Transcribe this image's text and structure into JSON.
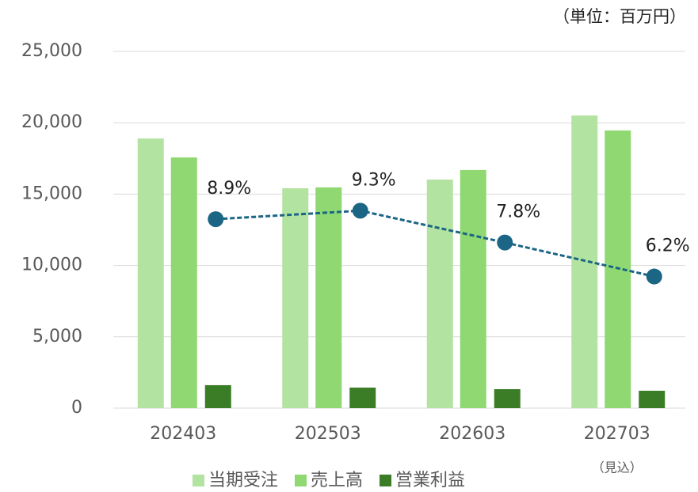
{
  "chart_data": {
    "type": "bar",
    "unit_label": "（単位：百万円）",
    "categories": [
      "202403",
      "202503",
      "202603",
      "202703"
    ],
    "annotation": "（見込）",
    "series": [
      {
        "name": "当期受注",
        "color": "#b3e3a0",
        "values": [
          18900,
          15410,
          16020,
          20510
        ]
      },
      {
        "name": "売上高",
        "color": "#8fd872",
        "values": [
          17570,
          15470,
          16690,
          19460
        ]
      },
      {
        "name": "営業利益",
        "color": "#3a7d26",
        "values": [
          1610,
          1440,
          1330,
          1220
        ]
      }
    ],
    "line": {
      "type": "line",
      "axis": "y2",
      "color": "#1b6585",
      "values": [
        8.9,
        9.3,
        7.8,
        6.2
      ],
      "value_labels": [
        "8.9%",
        "9.3%",
        "7.8%",
        "6.2%"
      ]
    },
    "ylim": [
      0,
      25000
    ],
    "yticks": [
      0,
      {
        "value": 5000,
        "label": "5,000"
      },
      {
        "value": 10000,
        "label": "10,000"
      },
      {
        "value": 15000,
        "label": "15,000"
      },
      {
        "value": 20000,
        "label": "20,000"
      },
      {
        "value": 25000,
        "label": "25,000"
      }
    ],
    "y2lim": [
      0,
      16.8
    ],
    "grid": true,
    "legend": "bottom"
  }
}
